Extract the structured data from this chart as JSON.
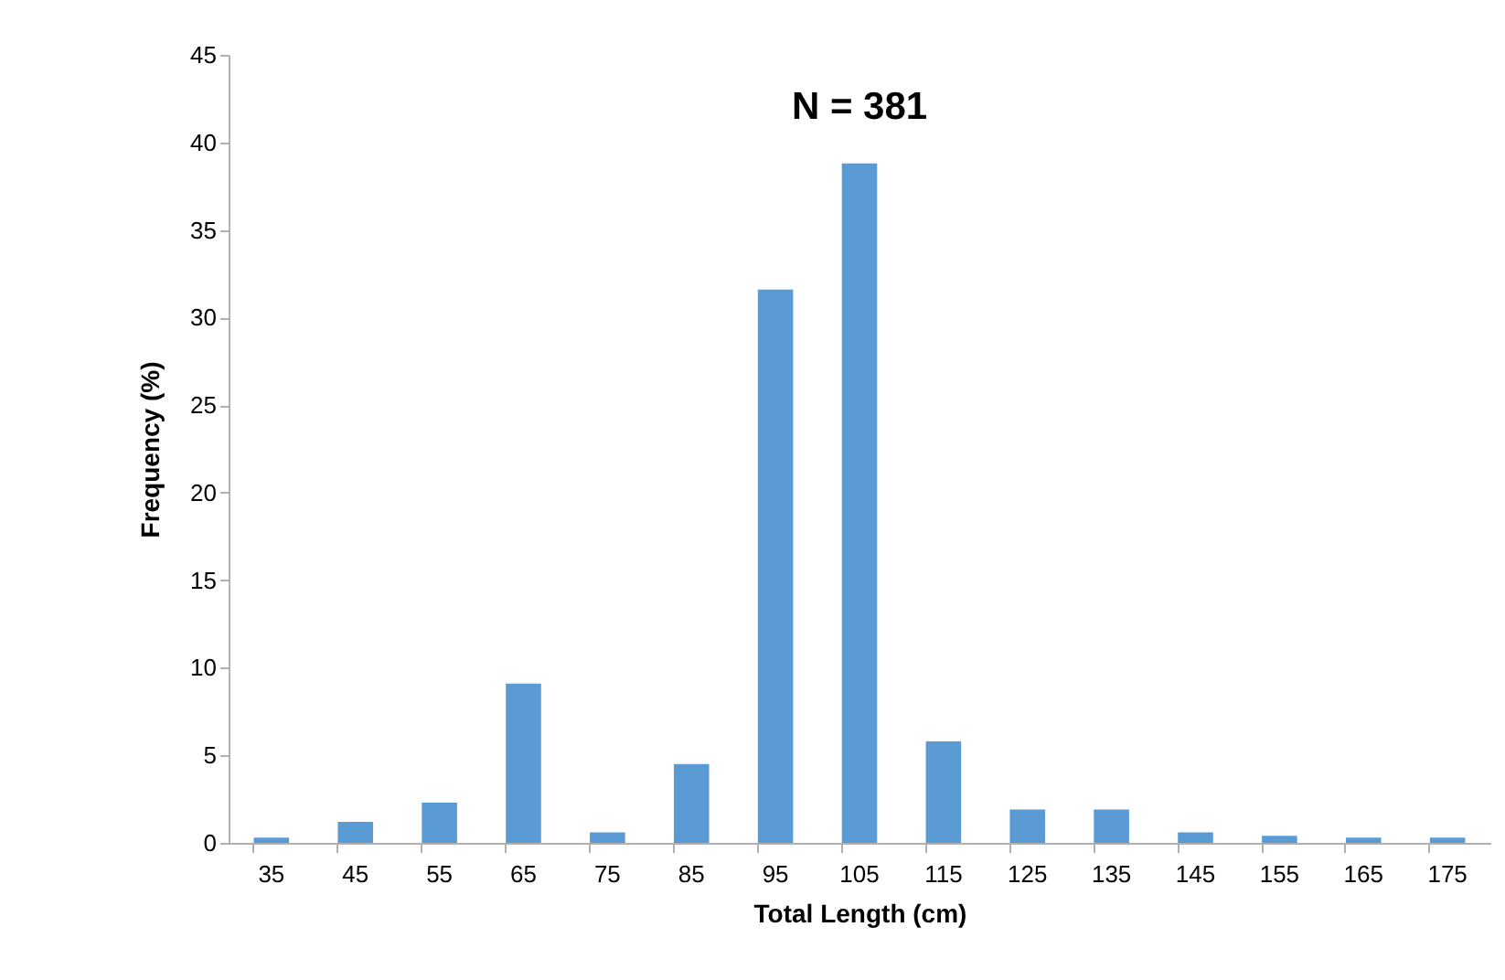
{
  "chart_data": {
    "type": "bar",
    "title": "N = 381",
    "xlabel": "Total Length (cm)",
    "ylabel": "Frequency (%)",
    "categories": [
      "35",
      "45",
      "55",
      "65",
      "75",
      "85",
      "95",
      "105",
      "115",
      "125",
      "135",
      "145",
      "155",
      "165",
      "175"
    ],
    "values": [
      0.3,
      1.2,
      2.3,
      9.1,
      0.6,
      4.5,
      31.6,
      38.8,
      5.8,
      1.9,
      1.9,
      0.6,
      0.4,
      0.3,
      0.3
    ],
    "color": "#5b9bd5",
    "ylim": [
      0,
      45
    ],
    "yticks": [
      0,
      5,
      10,
      15,
      20,
      25,
      30,
      35,
      40,
      45
    ],
    "grid": false
  }
}
